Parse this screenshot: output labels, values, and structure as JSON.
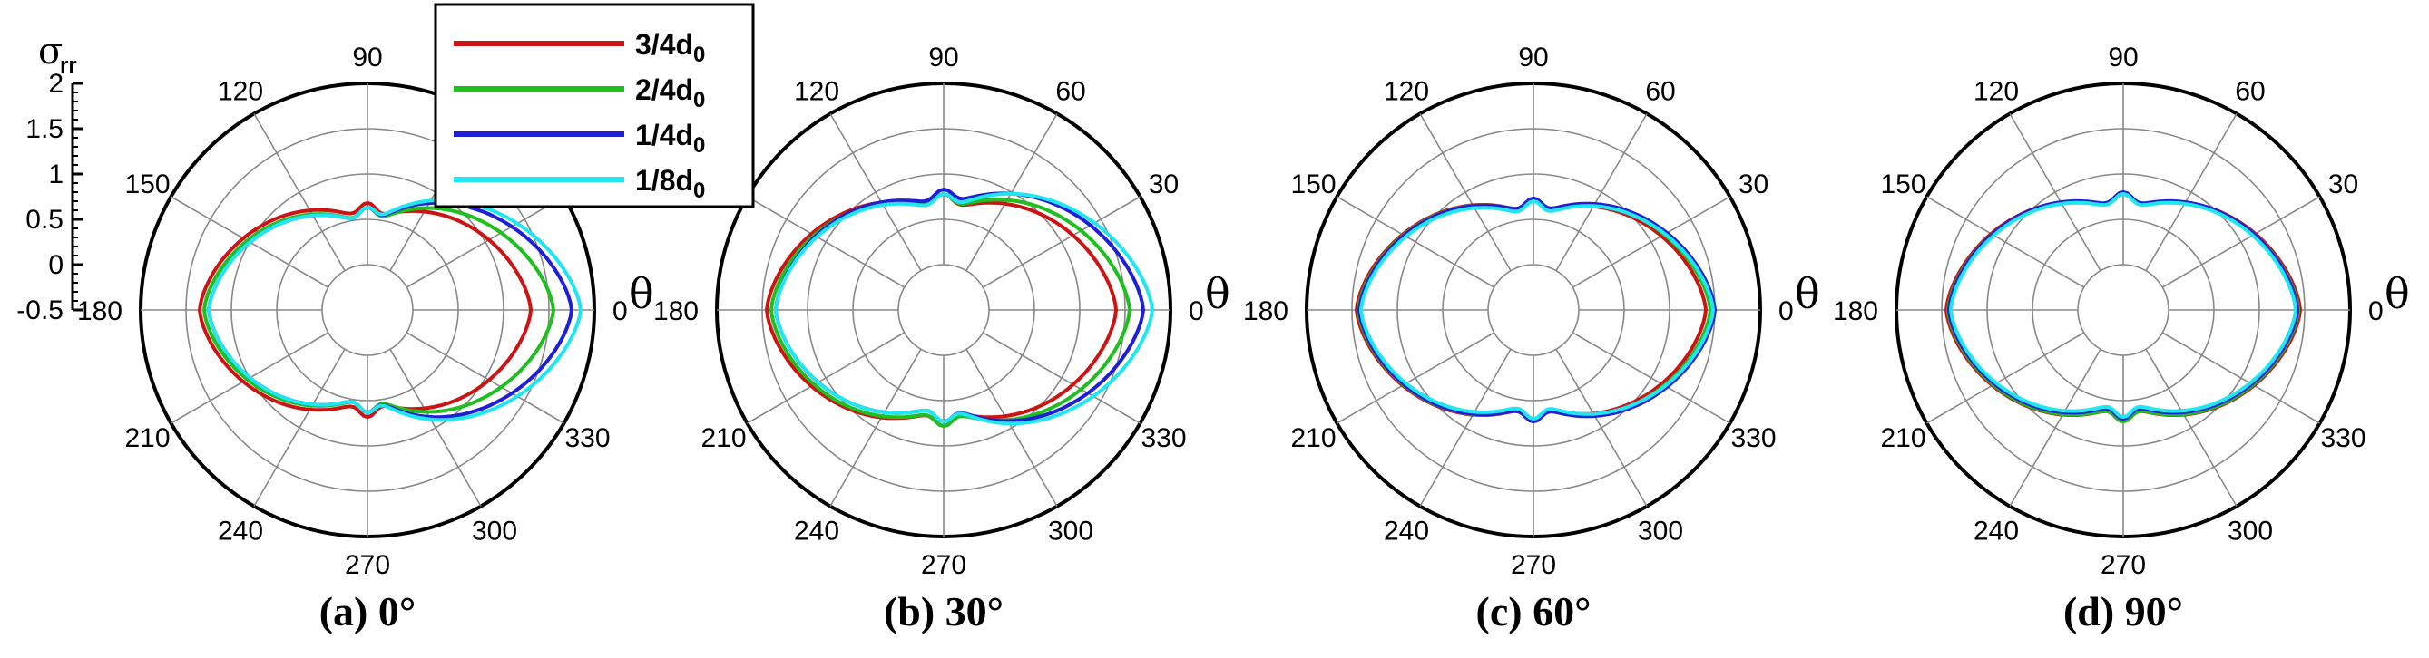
{
  "colors": {
    "3/4": "#cc1414",
    "2/4": "#1fbf1f",
    "1/4": "#1f1fd8",
    "1/8": "#1fe6f0"
  },
  "legend": {
    "entries": [
      {
        "key": "3/4",
        "label_main": "3/4d",
        "label_sub": "0"
      },
      {
        "key": "2/4",
        "label_main": "2/4d",
        "label_sub": "0"
      },
      {
        "key": "1/4",
        "label_main": "1/4d",
        "label_sub": "0"
      },
      {
        "key": "1/8",
        "label_main": "1/8d",
        "label_sub": "0"
      }
    ]
  },
  "radial_axis": {
    "symbol": "σ",
    "subscript": "rr",
    "tick_labels": [
      "2",
      "1.5",
      "1",
      "0.5",
      "0",
      "-0.5"
    ]
  },
  "angular_axis": {
    "symbol": "θ",
    "tick_labels": [
      "0",
      "30",
      "60",
      "90",
      "120",
      "150",
      "180",
      "210",
      "240",
      "270",
      "300",
      "330"
    ]
  },
  "chart_data": {
    "type": "polar-line",
    "r_range": [
      -0.5,
      2
    ],
    "r_grid": [
      -0.5,
      0,
      0.5,
      1,
      1.5,
      2
    ],
    "angle_grid_deg": [
      0,
      30,
      60,
      90,
      120,
      150,
      180,
      210,
      240,
      270,
      300,
      330
    ],
    "legend_position": "top-center",
    "panels": [
      {
        "caption": "(a) 0°",
        "series": [
          {
            "name": "3/4d0",
            "r_at_0": 1.3,
            "r_at_180": 1.35,
            "r_at_90": 0.5,
            "r_at_270": 0.5
          },
          {
            "name": "2/4d0",
            "r_at_0": 1.55,
            "r_at_180": 1.3,
            "r_at_90": 0.45,
            "r_at_270": 0.45
          },
          {
            "name": "1/4d0",
            "r_at_0": 1.75,
            "r_at_180": 1.25,
            "r_at_90": 0.45,
            "r_at_270": 0.45
          },
          {
            "name": "1/8d0",
            "r_at_0": 1.85,
            "r_at_180": 1.25,
            "r_at_90": 0.45,
            "r_at_270": 0.45
          }
        ]
      },
      {
        "caption": "(b) 30°",
        "series": [
          {
            "name": "3/4d0",
            "r_at_0": 1.4,
            "r_at_180": 1.45,
            "r_at_90": 0.6,
            "r_at_270": 0.6
          },
          {
            "name": "2/4d0",
            "r_at_0": 1.55,
            "r_at_180": 1.4,
            "r_at_90": 0.6,
            "r_at_270": 0.6
          },
          {
            "name": "1/4d0",
            "r_at_0": 1.7,
            "r_at_180": 1.35,
            "r_at_90": 0.65,
            "r_at_270": 0.55
          },
          {
            "name": "1/8d0",
            "r_at_0": 1.8,
            "r_at_180": 1.35,
            "r_at_90": 0.6,
            "r_at_270": 0.55
          }
        ]
      },
      {
        "caption": "(c) 60°",
        "series": [
          {
            "name": "3/4d0",
            "r_at_0": 1.4,
            "r_at_180": 1.45,
            "r_at_90": 0.55,
            "r_at_270": 0.55
          },
          {
            "name": "2/4d0",
            "r_at_0": 1.45,
            "r_at_180": 1.43,
            "r_at_90": 0.55,
            "r_at_270": 0.55
          },
          {
            "name": "1/4d0",
            "r_at_0": 1.5,
            "r_at_180": 1.42,
            "r_at_90": 0.55,
            "r_at_270": 0.55
          },
          {
            "name": "1/8d0",
            "r_at_0": 1.48,
            "r_at_180": 1.4,
            "r_at_90": 0.52,
            "r_at_270": 0.52
          }
        ]
      },
      {
        "caption": "(d) 90°",
        "series": [
          {
            "name": "3/4d0",
            "r_at_0": 1.45,
            "r_at_180": 1.45,
            "r_at_90": 0.6,
            "r_at_270": 0.55
          },
          {
            "name": "2/4d0",
            "r_at_0": 1.43,
            "r_at_180": 1.43,
            "r_at_90": 0.6,
            "r_at_270": 0.55
          },
          {
            "name": "1/4d0",
            "r_at_0": 1.42,
            "r_at_180": 1.42,
            "r_at_90": 0.62,
            "r_at_270": 0.52
          },
          {
            "name": "1/8d0",
            "r_at_0": 1.4,
            "r_at_180": 1.4,
            "r_at_90": 0.6,
            "r_at_270": 0.5
          }
        ]
      }
    ]
  }
}
